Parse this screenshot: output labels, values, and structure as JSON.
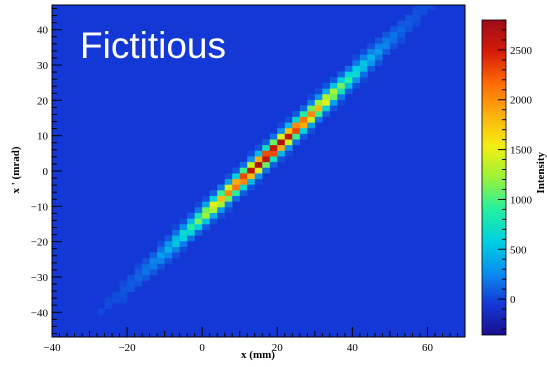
{
  "annotation": "Fictitious",
  "chart_data": {
    "type": "heatmap",
    "title": "",
    "xlabel": "x (mm)",
    "ylabel": "x ' (mrad)",
    "zlabel": "Intensity",
    "xlim": [
      -40,
      70
    ],
    "ylim": [
      -47,
      47
    ],
    "zlim": [
      -360,
      2800
    ],
    "x_ticks": [
      -40,
      -20,
      0,
      20,
      40,
      60
    ],
    "y_ticks": [
      -40,
      -30,
      -20,
      -10,
      0,
      10,
      20,
      30,
      40
    ],
    "z_ticks": [
      0,
      500,
      1000,
      1500,
      2000,
      2500
    ],
    "colormap": [
      "#1b0e8e",
      "#1438d6",
      "#0a8ff0",
      "#00d2de",
      "#25f0a0",
      "#9cf238",
      "#f4ee10",
      "#fdb010",
      "#ff6a05",
      "#d51a08",
      "#9c0d1a"
    ],
    "background_color": "#1438d6",
    "distribution": {
      "description_free": true,
      "mean_x": 18,
      "mean_y": 5,
      "slope": 1.0,
      "sigma_along_x": 14,
      "sigma_across_y": 1.6,
      "peak": 2800
    },
    "grid": false,
    "legend": "color-bar-right"
  }
}
